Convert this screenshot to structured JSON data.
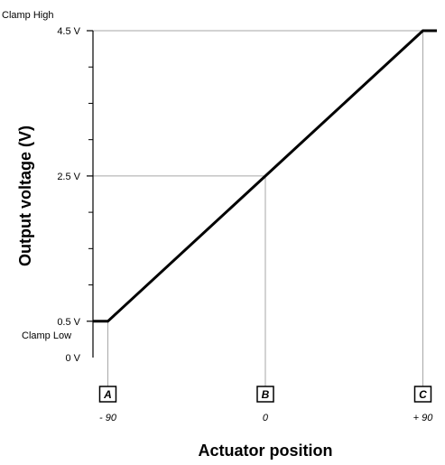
{
  "chart_data": {
    "type": "line",
    "title": "",
    "xlabel": "Actuator position",
    "ylabel": "Output voltage (V)",
    "xlim": [
      -98.5,
      98
    ],
    "ylim": [
      0,
      4.5
    ],
    "grid": false,
    "series": [
      {
        "x": [
          -98.5,
          -90,
          90,
          98
        ],
        "y": [
          0.5,
          0.5,
          4.5,
          4.5
        ]
      }
    ],
    "y_ticks": [
      {
        "value": 0.5,
        "label": "0.5 V"
      },
      {
        "value": 2.5,
        "label": "2.5 V"
      },
      {
        "value": 4.5,
        "label": "4.5 V"
      }
    ],
    "y_zero_label": "0 V",
    "y_minor_ticks": [
      1.0,
      1.5,
      2.0,
      3.0,
      3.5,
      4.0
    ],
    "clamp_high_label": "Clamp High",
    "clamp_low_label": "Clamp Low",
    "markers": [
      {
        "letter": "A",
        "x": -90,
        "y": 0.5,
        "position_label": "- 90"
      },
      {
        "letter": "B",
        "x": 0,
        "y": 2.5,
        "position_label": "0"
      },
      {
        "letter": "C",
        "x": 90,
        "y": 4.5,
        "position_label": "+ 90"
      }
    ],
    "colors": {
      "line": "#000000",
      "guide": "#a6a6a6",
      "axis": "#000000"
    }
  }
}
